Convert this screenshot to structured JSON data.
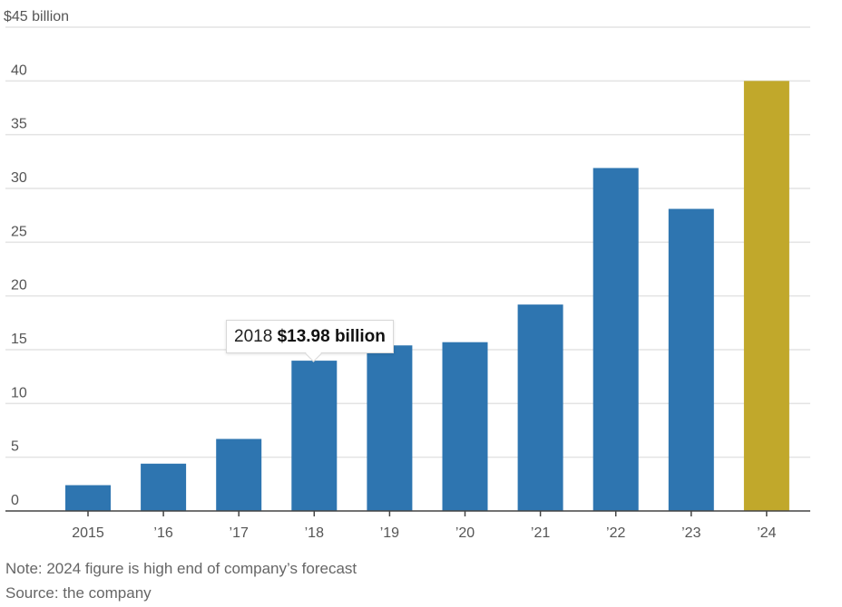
{
  "chart_data": {
    "type": "bar",
    "title": "",
    "unit_label": "$45 billion",
    "xlabel": "",
    "ylabel": "",
    "ylim": [
      0,
      45
    ],
    "yticks": [
      0,
      5,
      10,
      15,
      20,
      25,
      30,
      35,
      40,
      45
    ],
    "ytick_labels": [
      "0",
      "5",
      "10",
      "15",
      "20",
      "25",
      "30",
      "35",
      "40",
      "$45 billion"
    ],
    "grid": true,
    "categories": [
      "2015",
      "’16",
      "’17",
      "’18",
      "’19",
      "’20",
      "’21",
      "’22",
      "’23",
      "’24"
    ],
    "values": [
      2.4,
      4.4,
      6.7,
      13.98,
      15.4,
      15.7,
      19.2,
      31.9,
      28.1,
      40.0
    ],
    "colors": [
      "#2e75b0",
      "#2e75b0",
      "#2e75b0",
      "#2e75b0",
      "#2e75b0",
      "#2e75b0",
      "#2e75b0",
      "#2e75b0",
      "#2e75b0",
      "#c1a82b"
    ],
    "highlight_color": "#c1a82b",
    "bar_color": "#2e75b0",
    "tooltip": {
      "category_index": 3,
      "label": "2018",
      "value_text": "$13.98 billion"
    },
    "note": "Note: 2024 figure is high end of company’s forecast",
    "source": "Source: the company"
  }
}
